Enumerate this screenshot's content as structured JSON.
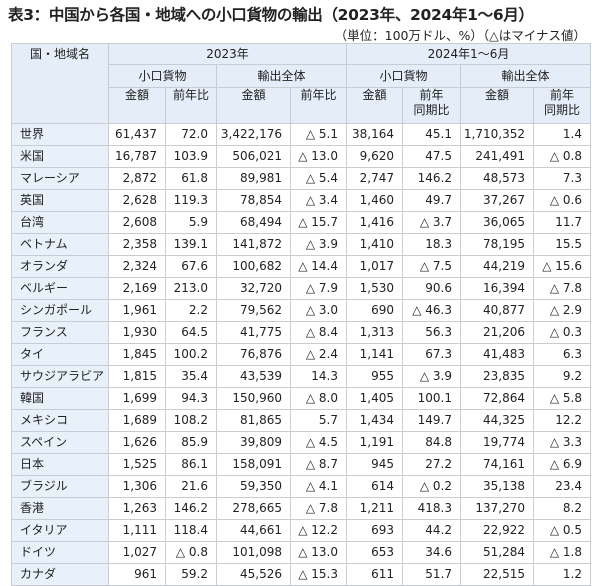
{
  "title": "表3：中国から各国・地域への小口貨物の輸出（2023年、2024年1～6月）",
  "unit_note": "（単位：100万ドル、%）（△はマイナス値）",
  "header": {
    "country": "国・地域名",
    "period_2023": "2023年",
    "period_2024": "2024年1～6月",
    "small_parcel": "小口貨物",
    "total_export": "輸出全体",
    "amount": "金額",
    "yoy": "前年比",
    "yoy_same_period_line1": "前年",
    "yoy_same_period_line2": "同期比"
  },
  "columns": [
    "国・地域名",
    "2023 小口貨物 金額",
    "2023 小口貨物 前年比",
    "2023 輸出全体 金額",
    "2023 輸出全体 前年比",
    "2024H1 小口貨物 金額",
    "2024H1 小口貨物 前年同期比",
    "2024H1 輸出全体 金額",
    "2024H1 輸出全体 前年同期比"
  ],
  "rows": [
    [
      "世界",
      "61,437",
      "72.0",
      "3,422,176",
      "△ 5.1",
      "38,164",
      "45.1",
      "1,710,352",
      "1.4"
    ],
    [
      "米国",
      "16,787",
      "103.9",
      "506,021",
      "△ 13.0",
      "9,620",
      "47.5",
      "241,491",
      "△ 0.8"
    ],
    [
      "マレーシア",
      "2,872",
      "61.8",
      "89,981",
      "△ 5.4",
      "2,747",
      "146.2",
      "48,573",
      "7.3"
    ],
    [
      "英国",
      "2,628",
      "119.3",
      "78,854",
      "△ 3.4",
      "1,460",
      "49.7",
      "37,267",
      "△ 0.6"
    ],
    [
      "台湾",
      "2,608",
      "5.9",
      "68,494",
      "△ 15.7",
      "1,416",
      "△ 3.7",
      "36,065",
      "11.7"
    ],
    [
      "ベトナム",
      "2,358",
      "139.1",
      "141,872",
      "△ 3.9",
      "1,410",
      "18.3",
      "78,195",
      "15.5"
    ],
    [
      "オランダ",
      "2,324",
      "67.6",
      "100,682",
      "△ 14.4",
      "1,017",
      "△ 7.5",
      "44,219",
      "△ 15.6"
    ],
    [
      "ベルギー",
      "2,169",
      "213.0",
      "32,720",
      "△ 7.9",
      "1,530",
      "90.6",
      "16,394",
      "△ 7.8"
    ],
    [
      "シンガポール",
      "1,961",
      "2.2",
      "79,562",
      "△ 3.0",
      "690",
      "△ 46.3",
      "40,877",
      "△ 2.9"
    ],
    [
      "フランス",
      "1,930",
      "64.5",
      "41,775",
      "△ 8.4",
      "1,313",
      "56.3",
      "21,206",
      "△ 0.3"
    ],
    [
      "タイ",
      "1,845",
      "100.2",
      "76,876",
      "△ 2.4",
      "1,141",
      "67.3",
      "41,483",
      "6.3"
    ],
    [
      "サウジアラビア",
      "1,815",
      "35.4",
      "43,539",
      "14.3",
      "955",
      "△ 3.9",
      "23,835",
      "9.2"
    ],
    [
      "韓国",
      "1,699",
      "94.3",
      "150,960",
      "△ 8.0",
      "1,405",
      "100.1",
      "72,864",
      "△ 5.8"
    ],
    [
      "メキシコ",
      "1,689",
      "108.2",
      "81,865",
      "5.7",
      "1,434",
      "149.7",
      "44,325",
      "12.2"
    ],
    [
      "スペイン",
      "1,626",
      "85.9",
      "39,809",
      "△ 4.5",
      "1,191",
      "84.8",
      "19,774",
      "△ 3.3"
    ],
    [
      "日本",
      "1,525",
      "86.1",
      "158,091",
      "△ 8.7",
      "945",
      "27.2",
      "74,161",
      "△ 6.9"
    ],
    [
      "ブラジル",
      "1,306",
      "21.6",
      "59,350",
      "△ 4.1",
      "614",
      "△ 0.2",
      "35,138",
      "23.4"
    ],
    [
      "香港",
      "1,263",
      "146.2",
      "278,665",
      "△ 7.8",
      "1,211",
      "418.3",
      "137,270",
      "8.2"
    ],
    [
      "イタリア",
      "1,111",
      "118.4",
      "44,661",
      "△ 12.2",
      "693",
      "44.2",
      "22,922",
      "△ 0.5"
    ],
    [
      "ドイツ",
      "1,027",
      "△ 0.8",
      "101,098",
      "△ 13.0",
      "653",
      "34.6",
      "51,284",
      "△ 1.8"
    ],
    [
      "カナダ",
      "961",
      "59.2",
      "45,526",
      "△ 15.3",
      "611",
      "51.7",
      "22,515",
      "1.2"
    ]
  ],
  "colors": {
    "header_bg": "#e4edf8",
    "name_col_bg": "#e8f0fa",
    "border": "#c9cdd3"
  }
}
